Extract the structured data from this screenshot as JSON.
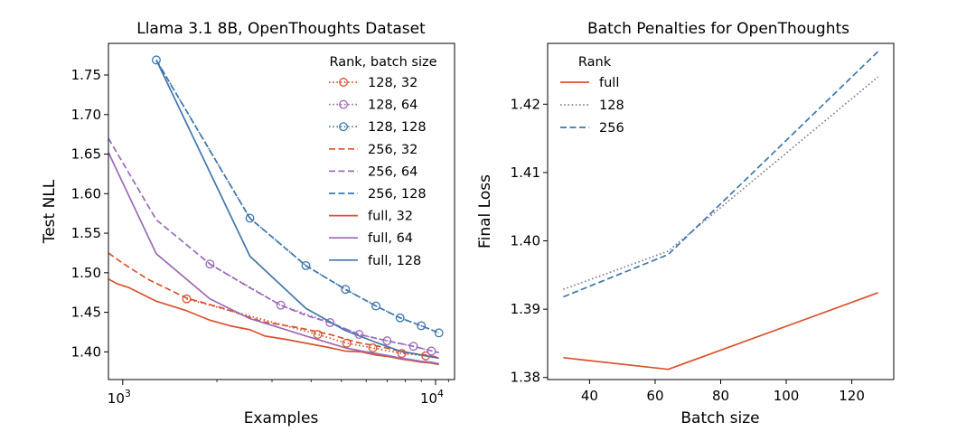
{
  "chart_data": [
    {
      "type": "line",
      "title": "Llama 3.1 8B, OpenThoughts Dataset",
      "xlabel": "Examples",
      "ylabel": "Test NLL",
      "xscale": "log",
      "xlim": [
        900,
        11500
      ],
      "ylim": [
        1.365,
        1.79
      ],
      "x_ticks": [
        {
          "value": 1000,
          "base": "10",
          "exp": "3"
        },
        {
          "value": 10000,
          "base": "10",
          "exp": "4"
        }
      ],
      "y_ticks": [
        "1.40",
        "1.45",
        "1.50",
        "1.55",
        "1.60",
        "1.65",
        "1.70",
        "1.75"
      ],
      "legend_title": "Rank, batch size",
      "legend_position": "top-right",
      "series": [
        {
          "name": "128, 32",
          "style": "dotted",
          "marker": true,
          "color": "#d9522e",
          "x": [
            1600,
            4200,
            5200,
            6300,
            7800,
            9300
          ],
          "y": [
            1.467,
            1.422,
            1.411,
            1.405,
            1.398,
            1.395
          ]
        },
        {
          "name": "128, 64",
          "style": "dotted",
          "marker": true,
          "color": "#9b6ab8",
          "x": [
            1900,
            3200,
            4600,
            5700,
            7000,
            8500,
            9700
          ],
          "y": [
            1.511,
            1.459,
            1.437,
            1.422,
            1.414,
            1.407,
            1.401
          ]
        },
        {
          "name": "128, 128",
          "style": "dotted",
          "marker": true,
          "color": "#3f77ad",
          "x": [
            1280,
            2550,
            3850,
            5150,
            6450,
            7700,
            9000,
            10250
          ],
          "y": [
            1.769,
            1.569,
            1.509,
            1.479,
            1.458,
            1.443,
            1.433,
            1.424
          ]
        },
        {
          "name": "256, 32",
          "style": "dashed",
          "marker": false,
          "color": "#d9522e",
          "x": [
            900,
            1000,
            1200,
            1600,
            2100,
            2800,
            3600,
            4600,
            5600,
            6800,
            8000,
            9300,
            10250
          ],
          "y": [
            1.525,
            1.512,
            1.492,
            1.468,
            1.455,
            1.438,
            1.431,
            1.422,
            1.412,
            1.406,
            1.399,
            1.396,
            1.393
          ]
        },
        {
          "name": "256, 64",
          "style": "dashed",
          "marker": false,
          "color": "#9b6ab8",
          "x": [
            900,
            1280,
            1900,
            2550,
            3200,
            3850,
            4600,
            5700,
            7000,
            8500,
            10250
          ],
          "y": [
            1.67,
            1.567,
            1.511,
            1.481,
            1.459,
            1.446,
            1.437,
            1.422,
            1.414,
            1.407,
            1.399
          ]
        },
        {
          "name": "256, 128",
          "style": "dashed",
          "marker": false,
          "color": "#3f77ad",
          "x": [
            1280,
            2550,
            3850,
            5150,
            6450,
            7700,
            9000,
            10250
          ],
          "y": [
            1.769,
            1.569,
            1.509,
            1.479,
            1.458,
            1.443,
            1.433,
            1.424
          ]
        },
        {
          "name": "full, 32",
          "style": "solid",
          "marker": false,
          "color": "#d9522e",
          "x": [
            900,
            960,
            1050,
            1280,
            1600,
            1900,
            2200,
            2550,
            2850,
            3300,
            3850,
            4500,
            5150,
            5800,
            6450,
            7100,
            7750,
            8400,
            9000,
            9650,
            10250
          ],
          "y": [
            1.492,
            1.486,
            1.481,
            1.464,
            1.452,
            1.44,
            1.433,
            1.428,
            1.42,
            1.416,
            1.411,
            1.406,
            1.401,
            1.4,
            1.396,
            1.394,
            1.391,
            1.389,
            1.387,
            1.386,
            1.384
          ]
        },
        {
          "name": "full, 64",
          "style": "solid",
          "marker": false,
          "color": "#9b6ab8",
          "x": [
            900,
            1280,
            1900,
            2550,
            3200,
            3850,
            4500,
            5150,
            5800,
            6450,
            7100,
            7750,
            8400,
            9000,
            9650,
            10250
          ],
          "y": [
            1.652,
            1.524,
            1.467,
            1.442,
            1.43,
            1.42,
            1.412,
            1.405,
            1.401,
            1.398,
            1.395,
            1.392,
            1.39,
            1.388,
            1.387,
            1.385
          ]
        },
        {
          "name": "full, 128",
          "style": "solid",
          "marker": false,
          "color": "#3f77ad",
          "x": [
            1280,
            2550,
            3850,
            5150,
            6450,
            7700,
            9000,
            10250
          ],
          "y": [
            1.769,
            1.521,
            1.455,
            1.427,
            1.412,
            1.401,
            1.396,
            1.392
          ]
        }
      ]
    },
    {
      "type": "line",
      "title": "Batch Penalties for OpenThoughts",
      "xlabel": "Batch size",
      "ylabel": "Final Loss",
      "xlim": [
        27.2,
        132.8
      ],
      "ylim": [
        1.3797,
        1.4289
      ],
      "x_ticks": [
        "40",
        "60",
        "80",
        "100",
        "120"
      ],
      "y_ticks": [
        "1.38",
        "1.39",
        "1.40",
        "1.41",
        "1.42"
      ],
      "legend_title": "Rank",
      "legend_position": "top-left",
      "series": [
        {
          "name": "full",
          "style": "solid",
          "color": "#d9522e",
          "x": [
            32,
            64,
            128
          ],
          "y": [
            1.3829,
            1.3812,
            1.3924
          ]
        },
        {
          "name": "128",
          "style": "dotted",
          "color": "#8a7a96",
          "x": [
            32,
            64,
            128
          ],
          "y": [
            1.3929,
            1.3985,
            1.424
          ]
        },
        {
          "name": "256",
          "style": "dashed",
          "color": "#3f77ad",
          "x": [
            32,
            64,
            128
          ],
          "y": [
            1.3918,
            1.398,
            1.4277
          ]
        }
      ]
    }
  ]
}
